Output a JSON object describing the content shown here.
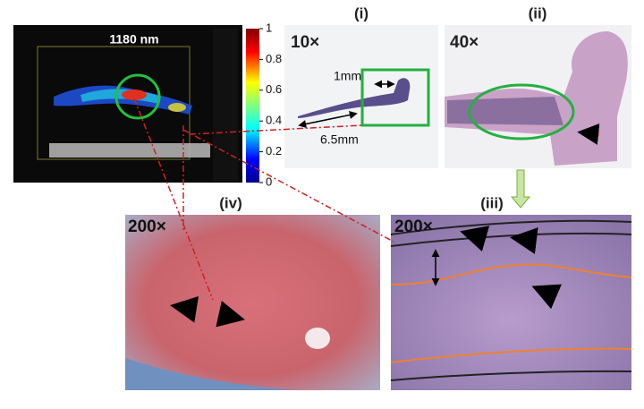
{
  "ultrasound": {
    "wavelength": "1180 nm"
  },
  "colorbar": {
    "ticks": [
      1,
      0.8,
      0.6,
      0.4,
      0.2,
      0
    ]
  },
  "panels": [
    {
      "label": "(i)",
      "magnification": "10×",
      "annotations": [
        "1mm",
        "6.5mm"
      ]
    },
    {
      "label": "(ii)",
      "magnification": "40×"
    },
    {
      "label": "(iii)",
      "magnification": "200×"
    },
    {
      "label": "(iv)",
      "magnification": "200×"
    }
  ]
}
